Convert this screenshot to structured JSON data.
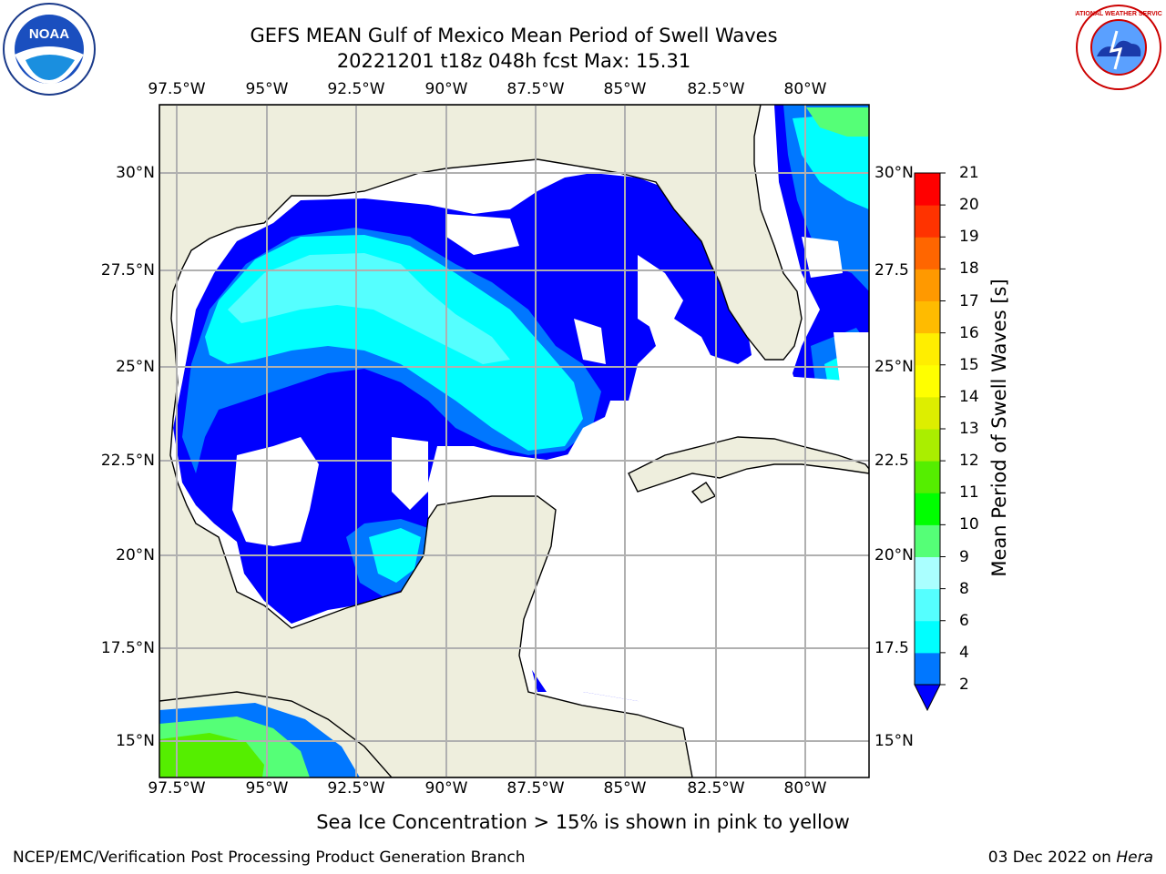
{
  "header": {
    "title_line1": "GEFS MEAN Gulf of Mexico Mean Period of Swell Waves",
    "title_line2": "20221201 t18z 048h fcst   Max: 15.31"
  },
  "map": {
    "lon_labels": [
      "97.5°W",
      "95°W",
      "92.5°W",
      "90°W",
      "87.5°W",
      "85°W",
      "82.5°W",
      "80°W"
    ],
    "lat_labels": [
      "30°N",
      "27.5°N",
      "25°N",
      "22.5°N",
      "20°N",
      "17.5°N",
      "15°N"
    ],
    "lat_labels_right": [
      "30°N",
      "27.5",
      "25°N",
      "22.5",
      "20°N",
      "17.5",
      "15°N"
    ],
    "colors": {
      "land": "#eeeedd",
      "ocean_blank": "#ffffff",
      "grid": "#b0b0b0",
      "coast": "#000000"
    }
  },
  "colorbar": {
    "label": "Mean Period of Swell Waves [s]",
    "ticks": [
      "2",
      "4",
      "6",
      "8",
      "9",
      "10",
      "11",
      "12",
      "13",
      "14",
      "15",
      "16",
      "17",
      "18",
      "19",
      "20",
      "21"
    ],
    "colors": [
      "#0000ff",
      "#0077ff",
      "#00ffff",
      "#55ffff",
      "#aaffff",
      "#55ff77",
      "#00ff00",
      "#55ee00",
      "#aaee00",
      "#ddee00",
      "#ffff00",
      "#ffee00",
      "#ffbb00",
      "#ff9900",
      "#ff6600",
      "#ff3300",
      "#ff0000"
    ]
  },
  "footer": {
    "note": "Sea Ice Concentration > 15% is shown in pink to yellow",
    "credit": "NCEP/EMC/Verification Post Processing Product Generation Branch",
    "date_prefix": "03 Dec 2022 on ",
    "date_machine": "Hera"
  },
  "logos": {
    "noaa_text": "NOAA",
    "nws_text": "NATIONAL WEATHER SERVICE"
  }
}
